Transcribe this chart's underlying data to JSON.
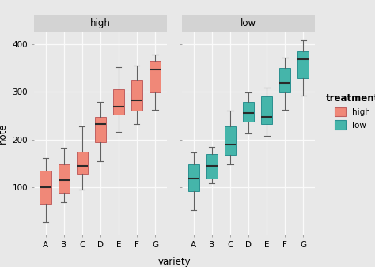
{
  "varieties": [
    "A",
    "B",
    "C",
    "D",
    "E",
    "F",
    "G"
  ],
  "facets": [
    "high",
    "low"
  ],
  "high_color": "#F08878",
  "low_color": "#45B5AA",
  "high_edge": "#C06060",
  "low_edge": "#2A9090",
  "median_color": "#2A2A2A",
  "whisker_color": "#606060",
  "cap_color": "#606060",
  "bg_color": "#E8E8E8",
  "panel_bg": "#E8E8E8",
  "strip_bg": "#D3D3D3",
  "grid_color": "#FAFAFA",
  "ylabel": "note",
  "xlabel": "variety",
  "legend_title": "treatment",
  "ylim": [
    0,
    425
  ],
  "yticks": [
    100,
    200,
    300,
    400
  ],
  "high_boxes": {
    "A": {
      "q1": 65,
      "median": 100,
      "q3": 135,
      "whislo": 28,
      "whishi": 162
    },
    "B": {
      "q1": 88,
      "median": 115,
      "q3": 148,
      "whislo": 68,
      "whishi": 182
    },
    "C": {
      "q1": 128,
      "median": 145,
      "q3": 175,
      "whislo": 95,
      "whishi": 228
    },
    "D": {
      "q1": 195,
      "median": 232,
      "q3": 248,
      "whislo": 155,
      "whishi": 278
    },
    "E": {
      "q1": 252,
      "median": 268,
      "q3": 305,
      "whislo": 215,
      "whishi": 352
    },
    "F": {
      "q1": 260,
      "median": 282,
      "q3": 325,
      "whislo": 232,
      "whishi": 355
    },
    "G": {
      "q1": 298,
      "median": 346,
      "q3": 365,
      "whislo": 262,
      "whishi": 378
    }
  },
  "low_boxes": {
    "A": {
      "q1": 92,
      "median": 118,
      "q3": 148,
      "whislo": 52,
      "whishi": 172
    },
    "B": {
      "q1": 118,
      "median": 145,
      "q3": 170,
      "whislo": 108,
      "whishi": 185
    },
    "C": {
      "q1": 168,
      "median": 190,
      "q3": 228,
      "whislo": 148,
      "whishi": 260
    },
    "D": {
      "q1": 238,
      "median": 256,
      "q3": 278,
      "whislo": 212,
      "whishi": 298
    },
    "E": {
      "q1": 232,
      "median": 248,
      "q3": 290,
      "whislo": 208,
      "whishi": 308
    },
    "F": {
      "q1": 298,
      "median": 318,
      "q3": 350,
      "whislo": 262,
      "whishi": 372
    },
    "G": {
      "q1": 328,
      "median": 368,
      "q3": 385,
      "whislo": 292,
      "whishi": 408
    }
  }
}
